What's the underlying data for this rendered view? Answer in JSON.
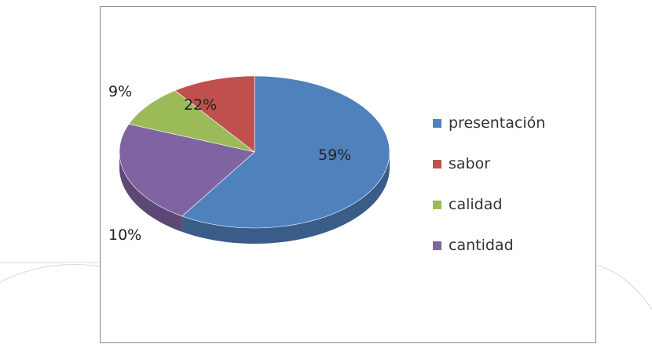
{
  "chart_data": {
    "type": "pie",
    "title": "",
    "start_category": "presentación",
    "categories": [
      "presentación",
      "sabor",
      "calidad",
      "cantidad"
    ],
    "values": [
      59,
      10,
      9,
      22
    ],
    "labels": [
      "59%",
      "10%",
      "9%",
      "22%"
    ],
    "colors": [
      "#4f81bd",
      "#c0504d",
      "#9bbb59",
      "#8064a2"
    ],
    "style": "3d",
    "legend_position": "right"
  }
}
